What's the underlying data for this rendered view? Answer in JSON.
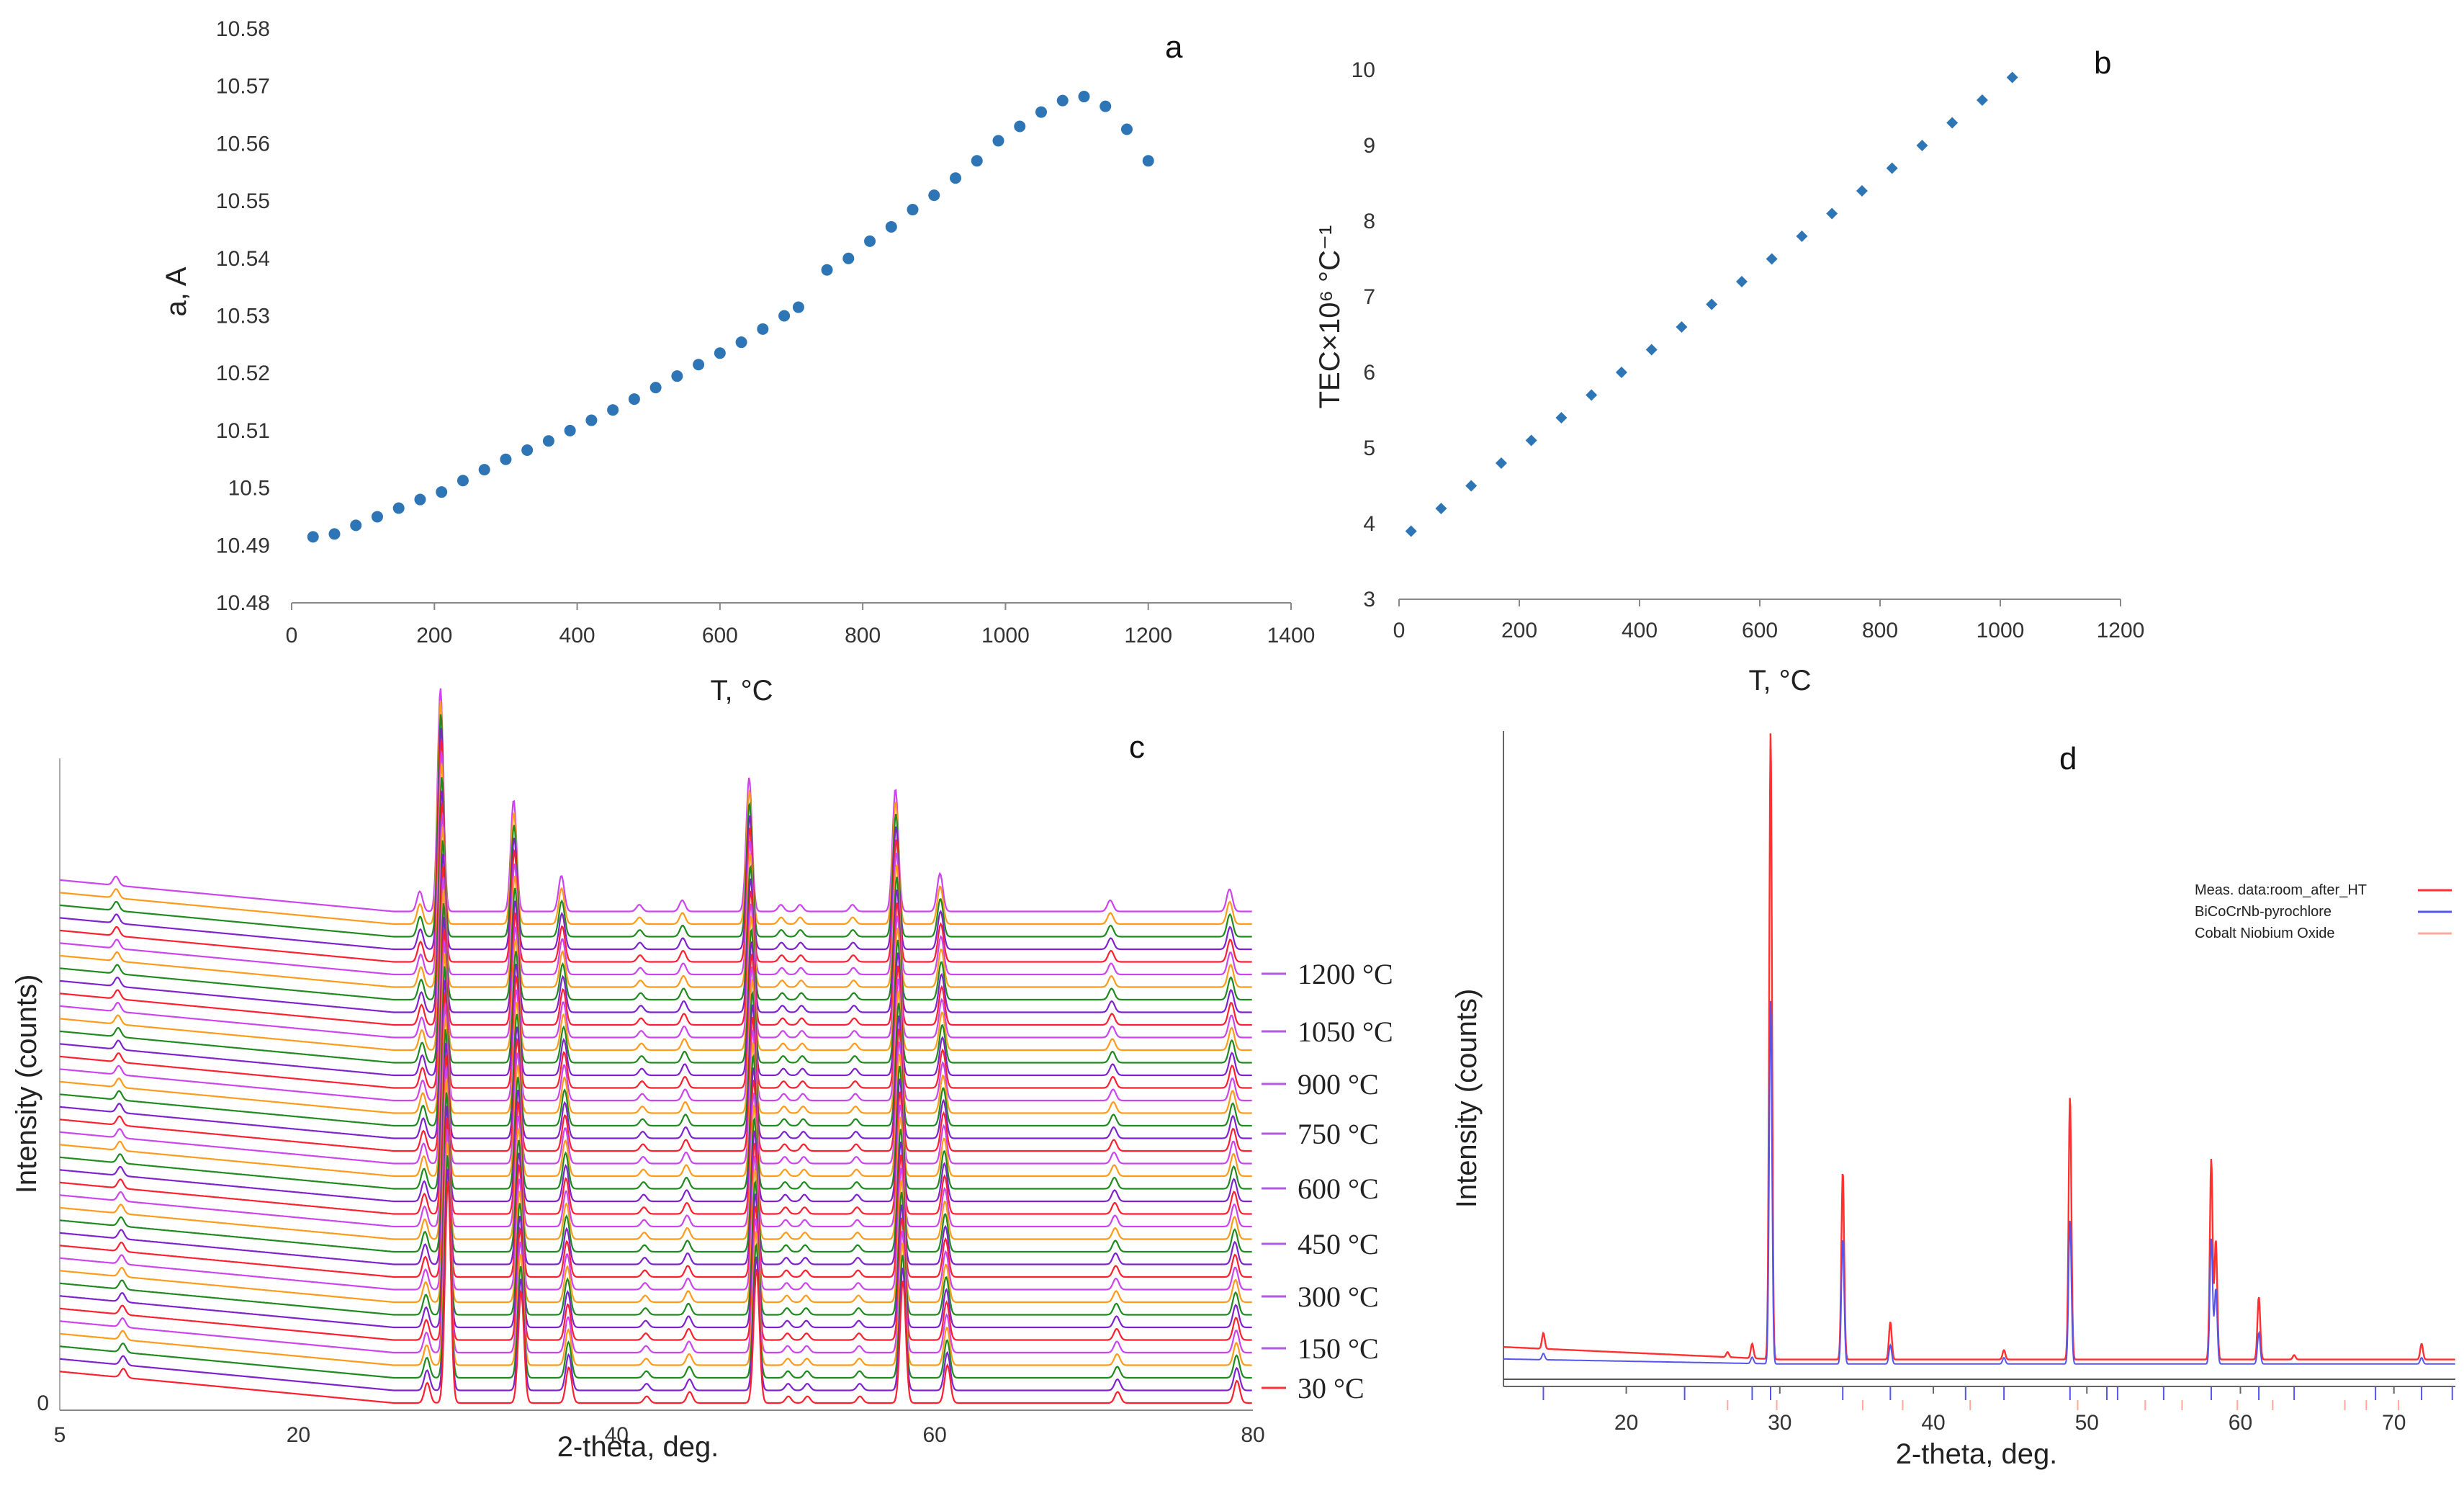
{
  "figure": {
    "panels": [
      "a",
      "b",
      "c",
      "d"
    ]
  },
  "chart_data": [
    {
      "panel": "a",
      "type": "scatter",
      "title": "a",
      "xlabel": "T, °C",
      "ylabel": "a, A",
      "xlim": [
        0,
        1400
      ],
      "ylim": [
        10.48,
        10.58
      ],
      "xticks": [
        "0",
        "200",
        "400",
        "600",
        "800",
        "1000",
        "1200",
        "1400"
      ],
      "yticks": [
        "10.48",
        "10.49",
        "10.5",
        "10.51",
        "10.52",
        "10.53",
        "10.54",
        "10.55",
        "10.56",
        "10.57",
        "10.58"
      ],
      "marker": "circle",
      "color": "#2E75B6",
      "x": [
        30,
        60,
        90,
        120,
        150,
        180,
        210,
        240,
        270,
        300,
        330,
        360,
        390,
        420,
        450,
        480,
        510,
        540,
        570,
        600,
        630,
        660,
        690,
        710,
        750,
        780,
        810,
        840,
        870,
        900,
        930,
        960,
        990,
        1020,
        1050,
        1080,
        1110,
        1140,
        1170,
        1200
      ],
      "y": [
        10.4915,
        10.492,
        10.4935,
        10.495,
        10.4965,
        10.498,
        10.4993,
        10.5013,
        10.5032,
        10.505,
        10.5066,
        10.5082,
        10.51,
        10.5118,
        10.5136,
        10.5155,
        10.5175,
        10.5195,
        10.5215,
        10.5235,
        10.5254,
        10.5277,
        10.53,
        10.5315,
        10.538,
        10.54,
        10.543,
        10.5455,
        10.5485,
        10.551,
        10.554,
        10.557,
        10.5605,
        10.563,
        10.5655,
        10.5675,
        10.5682,
        10.5665,
        10.5625,
        10.557
      ]
    },
    {
      "panel": "b",
      "type": "scatter",
      "title": "b",
      "xlabel": "T, °C",
      "ylabel": "TEC×10⁶ °C⁻¹",
      "xlim": [
        0,
        1200
      ],
      "ylim": [
        3,
        10
      ],
      "xticks": [
        "0",
        "200",
        "400",
        "600",
        "800",
        "1000",
        "1200"
      ],
      "yticks": [
        "3",
        "4",
        "5",
        "6",
        "7",
        "8",
        "9",
        "10"
      ],
      "marker": "diamond",
      "color": "#2E75B6",
      "x": [
        20,
        70,
        120,
        170,
        220,
        270,
        320,
        370,
        420,
        470,
        520,
        570,
        620,
        670,
        720,
        770,
        820,
        870,
        920,
        970,
        1020
      ],
      "y": [
        3.9,
        4.2,
        4.5,
        4.8,
        5.1,
        5.4,
        5.7,
        6.0,
        6.3,
        6.6,
        6.9,
        7.2,
        7.5,
        7.8,
        8.1,
        8.4,
        8.7,
        9.0,
        9.3,
        9.6,
        9.9
      ]
    },
    {
      "panel": "c",
      "type": "line",
      "title": "c",
      "xlabel": "2-theta, deg.",
      "ylabel": "Intensity (counts)",
      "xlim": [
        5,
        80
      ],
      "xticks": [
        "5",
        "20",
        "40",
        "60",
        "80"
      ],
      "origin_label": "0",
      "series_count": 40,
      "series_colors": [
        "#ff1f2f",
        "#7e22ce",
        "#1f8a1f",
        "#ff9a1a",
        "#cc44ee"
      ],
      "peaks_2theta": [
        9.0,
        28.1,
        29.4,
        34.0,
        37.0,
        41.9,
        44.6,
        48.8,
        50.8,
        52.0,
        55.3,
        58.0,
        60.8,
        71.5,
        79.0
      ],
      "peak_heights": [
        0.04,
        0.09,
        1.0,
        0.5,
        0.16,
        0.03,
        0.05,
        0.6,
        0.03,
        0.03,
        0.03,
        0.55,
        0.17,
        0.05,
        0.1
      ],
      "temperature_labels": [
        "1200 °C",
        "1050 °C",
        "900  °C",
        "750  °C",
        "600  °C",
        "450  °C",
        "300  °C",
        "150  °C",
        "30   °C"
      ]
    },
    {
      "panel": "d",
      "type": "line",
      "title": "d",
      "xlabel": "2-theta, deg.",
      "ylabel": "Intensity (counts)",
      "xlim": [
        12,
        74
      ],
      "xticks": [
        "20",
        "30",
        "40",
        "50",
        "60",
        "70"
      ],
      "legend_position": "top-right",
      "legend": [
        {
          "name": "Meas. data:room_after_HT",
          "color": "#ff3030"
        },
        {
          "name": "BiCoCrNb-pyrochlore",
          "color": "#5555ee"
        },
        {
          "name": "Cobalt Niobium Oxide",
          "color": "#ffaa99"
        }
      ],
      "peaks_2theta": [
        14.6,
        26.6,
        28.2,
        29.4,
        34.1,
        37.2,
        44.6,
        48.9,
        58.1,
        58.4,
        61.2,
        63.5,
        71.8
      ],
      "peak_heights": [
        0.025,
        0.008,
        0.023,
        1.0,
        0.3,
        0.06,
        0.015,
        0.42,
        0.32,
        0.19,
        0.1,
        0.007,
        0.025
      ],
      "pyrochlore_peak_heights": [
        0.01,
        0.0,
        0.01,
        0.58,
        0.2,
        0.03,
        0.01,
        0.23,
        0.2,
        0.12,
        0.05,
        0.0,
        0.01
      ],
      "tick_marks_pyrochlore": [
        14.6,
        23.8,
        28.2,
        29.4,
        34.1,
        37.2,
        42.1,
        44.6,
        48.9,
        51.3,
        52.0,
        55.0,
        58.1,
        61.2,
        63.5,
        68.8,
        71.8,
        73.8
      ],
      "tick_marks_cobalt_niobium_oxide": [
        26.6,
        29.8,
        35.4,
        38.0,
        42.4,
        49.4,
        53.8,
        56.2,
        59.8,
        62.1,
        66.8,
        68.2,
        70.3
      ]
    }
  ]
}
